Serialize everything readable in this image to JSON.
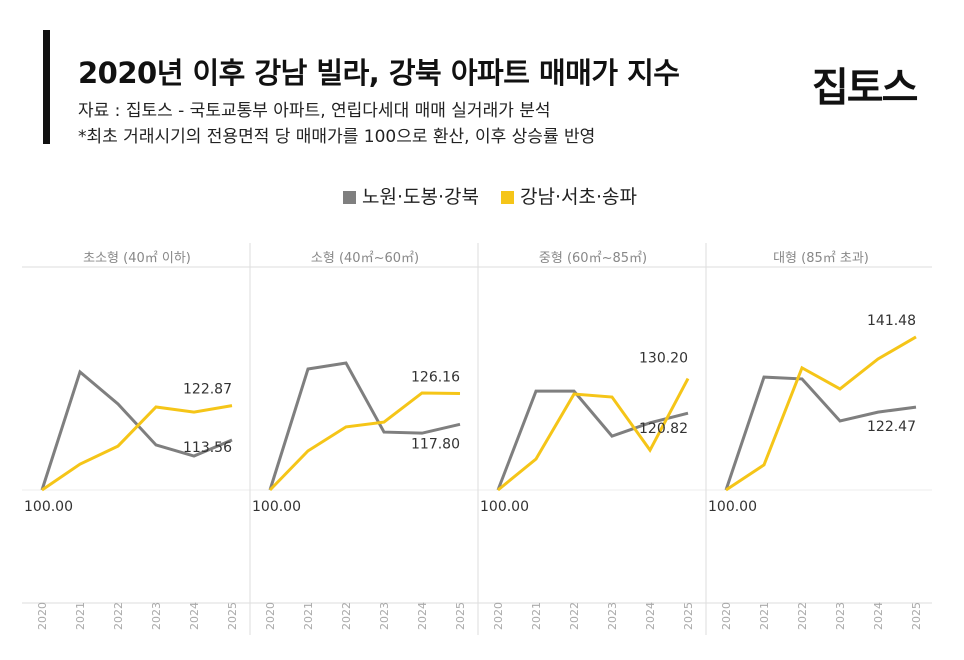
{
  "header": {
    "title": "2020년 이후 강남 빌라, 강북 아파트 매매가 지수",
    "source": "자료 : 집토스 - 국토교통부 아파트, 연립다세대 매매 실거래가 분석",
    "note": "*최초 거래시기의 전용면적 당 매매가를 100으로 환산, 이후 상승률 반영",
    "logo": "집토스"
  },
  "colors": {
    "gray": "#7f7f7f",
    "yellow": "#f5c518"
  },
  "chart_data": [
    {
      "type": "line",
      "title": "초소형 (40㎡ 이하)",
      "categories": [
        "2020",
        "2021",
        "2022",
        "2023",
        "2024",
        "2025"
      ],
      "ylim": [
        70,
        160
      ],
      "grid": false,
      "series": [
        {
          "name": "노원·도봉·강북",
          "values": [
            100,
            132,
            123.3,
            112.2,
            109.2,
            113.56
          ]
        },
        {
          "name": "강남·서초·송파",
          "values": [
            100,
            107,
            111.9,
            122.5,
            121.1,
            122.87
          ]
        }
      ],
      "labels": [
        "100.00",
        "113.56",
        "122.87"
      ]
    },
    {
      "type": "line",
      "title": "소형 (40㎡~60㎡)",
      "categories": [
        "2020",
        "2021",
        "2022",
        "2023",
        "2024",
        "2025"
      ],
      "ylim": [
        70,
        160
      ],
      "grid": false,
      "series": [
        {
          "name": "노원·도봉·강북",
          "values": [
            100,
            132.8,
            134.4,
            115.7,
            115.4,
            117.8
          ]
        },
        {
          "name": "강남·서초·송파",
          "values": [
            100,
            110.6,
            117.1,
            118.4,
            126.3,
            126.16
          ]
        }
      ],
      "labels": [
        "100.00",
        "117.80",
        "126.16"
      ]
    },
    {
      "type": "line",
      "title": "중형 (60㎡~85㎡)",
      "categories": [
        "2020",
        "2021",
        "2022",
        "2023",
        "2024",
        "2025"
      ],
      "ylim": [
        70,
        160
      ],
      "grid": false,
      "series": [
        {
          "name": "노원·도봉·강북",
          "values": [
            100,
            126.8,
            126.8,
            114.6,
            118.2,
            120.82
          ]
        },
        {
          "name": "강남·서초·송파",
          "values": [
            100,
            108.4,
            126.0,
            125.2,
            110.8,
            130.2
          ]
        }
      ],
      "labels": [
        "100.00",
        "120.82",
        "130.20"
      ]
    },
    {
      "type": "line",
      "title": "대형 (85㎡ 초과)",
      "categories": [
        "2020",
        "2021",
        "2022",
        "2023",
        "2024",
        "2025"
      ],
      "ylim": [
        70,
        160
      ],
      "grid": false,
      "series": [
        {
          "name": "노원·도봉·강북",
          "values": [
            100,
            130.6,
            130.1,
            118.7,
            121.1,
            122.47
          ]
        },
        {
          "name": "강남·서초·송파",
          "values": [
            100,
            106.8,
            133.1,
            127.4,
            135.5,
            141.48
          ]
        }
      ],
      "labels": [
        "100.00",
        "122.47",
        "141.48"
      ]
    }
  ],
  "legend": {
    "position": "top",
    "items": [
      "노원·도봉·강북",
      "강남·서초·송파"
    ]
  }
}
